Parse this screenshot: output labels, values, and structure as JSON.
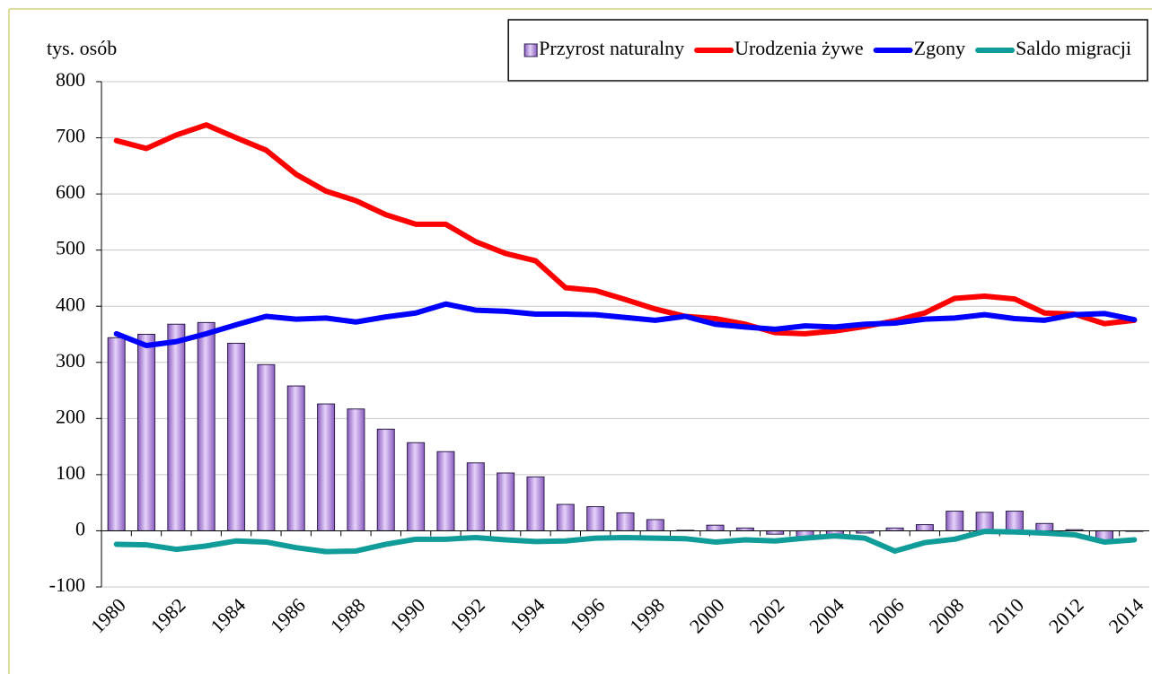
{
  "chart_data": {
    "type": "combo",
    "y_label": "tys. osób",
    "categories": [
      "1980",
      null,
      "1982",
      null,
      "1984",
      null,
      "1986",
      null,
      "1988",
      null,
      "1990",
      null,
      "1992",
      null,
      "1994",
      null,
      "1996",
      null,
      "1998",
      null,
      "2000",
      null,
      "2002",
      null,
      "2004",
      null,
      "2006",
      null,
      "2008",
      null,
      "2010",
      null,
      "2012",
      null,
      "2014"
    ],
    "series": [
      {
        "name": "Przyrost naturalny",
        "type": "bar",
        "color": "#c9a3ee",
        "values": [
          344,
          350,
          368,
          371,
          334,
          296,
          258,
          226,
          217,
          181,
          157,
          141,
          121,
          103,
          96,
          47,
          43,
          32,
          20,
          1,
          10,
          5,
          -6,
          -14,
          -8,
          -4,
          5,
          11,
          35,
          33,
          35,
          13,
          2,
          -18,
          -1
        ]
      },
      {
        "name": "Urodzenia żywe",
        "type": "line",
        "color": "#ff0000",
        "values": [
          695,
          681,
          705,
          723,
          700,
          678,
          635,
          605,
          588,
          563,
          546,
          546,
          515,
          494,
          481,
          433,
          428,
          412,
          395,
          382,
          378,
          368,
          353,
          351,
          356,
          364,
          374,
          388,
          414,
          418,
          413,
          388,
          386,
          369,
          375
        ]
      },
      {
        "name": "Zgony",
        "type": "line",
        "color": "#0000ff",
        "values": [
          351,
          330,
          337,
          351,
          367,
          382,
          377,
          379,
          372,
          381,
          388,
          404,
          393,
          391,
          386,
          386,
          385,
          380,
          375,
          382,
          368,
          363,
          359,
          365,
          363,
          368,
          370,
          377,
          379,
          385,
          378,
          375,
          385,
          387,
          376
        ]
      },
      {
        "name": "Saldo migracji",
        "type": "line",
        "color": "#109c98",
        "values": [
          -24,
          -25,
          -33,
          -27,
          -18,
          -20,
          -30,
          -37,
          -36,
          -24,
          -15,
          -15,
          -12,
          -16,
          -19,
          -18,
          -13,
          -12,
          -13,
          -14,
          -20,
          -16,
          -18,
          -13,
          -9,
          -13,
          -36,
          -21,
          -15,
          -1,
          -2,
          -4,
          -7,
          -20,
          -16
        ]
      }
    ],
    "ylim": [
      -100,
      800
    ],
    "yticks": [
      -100,
      0,
      100,
      200,
      300,
      400,
      500,
      600,
      700,
      800
    ],
    "grid": true,
    "legend": "top-right"
  }
}
